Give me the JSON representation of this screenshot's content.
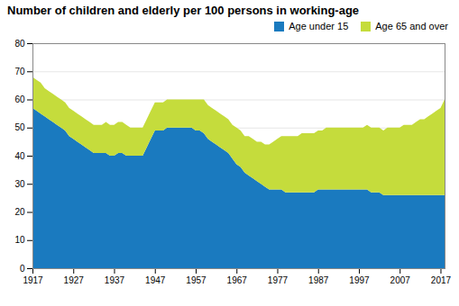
{
  "chart_data": {
    "type": "area",
    "stacked": true,
    "title": "Number of children and elderly per 100 persons in working-age",
    "x": [
      1917,
      1918,
      1919,
      1920,
      1921,
      1922,
      1923,
      1924,
      1925,
      1926,
      1927,
      1928,
      1929,
      1930,
      1931,
      1932,
      1933,
      1934,
      1935,
      1936,
      1937,
      1938,
      1939,
      1940,
      1941,
      1942,
      1943,
      1944,
      1945,
      1946,
      1947,
      1948,
      1949,
      1950,
      1951,
      1952,
      1953,
      1954,
      1955,
      1956,
      1957,
      1958,
      1959,
      1960,
      1961,
      1962,
      1963,
      1964,
      1965,
      1966,
      1967,
      1968,
      1969,
      1970,
      1971,
      1972,
      1973,
      1974,
      1975,
      1976,
      1977,
      1978,
      1979,
      1980,
      1981,
      1982,
      1983,
      1984,
      1985,
      1986,
      1987,
      1988,
      1989,
      1990,
      1991,
      1992,
      1993,
      1994,
      1995,
      1996,
      1997,
      1998,
      1999,
      2000,
      2001,
      2002,
      2003,
      2004,
      2005,
      2006,
      2007,
      2008,
      2009,
      2010,
      2011,
      2012,
      2013,
      2014,
      2015,
      2016,
      2017,
      2018
    ],
    "series": [
      {
        "name": "Age under 15",
        "color": "#1a7abf",
        "values": [
          57,
          56,
          55,
          54,
          53,
          52,
          51,
          50,
          49,
          47,
          46,
          45,
          44,
          43,
          42,
          41,
          41,
          41,
          41,
          40,
          40,
          41,
          41,
          40,
          40,
          40,
          40,
          40,
          43,
          46,
          49,
          49,
          49,
          50,
          50,
          50,
          50,
          50,
          50,
          50,
          49,
          49,
          48,
          46,
          45,
          44,
          43,
          42,
          41,
          39,
          37,
          36,
          34,
          33,
          32,
          31,
          30,
          29,
          28,
          28,
          28,
          28,
          27,
          27,
          27,
          27,
          27,
          27,
          27,
          27,
          28,
          28,
          28,
          28,
          28,
          28,
          28,
          28,
          28,
          28,
          28,
          28,
          28,
          27,
          27,
          27,
          26,
          26,
          26,
          26,
          26,
          26,
          26,
          26,
          26,
          26,
          26,
          26,
          26,
          26,
          26,
          26
        ]
      },
      {
        "name": "Age 65 and over",
        "color": "#c5dc3c",
        "values": [
          11,
          11,
          11,
          10,
          10,
          10,
          10,
          10,
          10,
          10,
          10,
          10,
          10,
          10,
          10,
          10,
          10,
          10,
          11,
          11,
          11,
          11,
          11,
          11,
          10,
          10,
          10,
          10,
          10,
          10,
          10,
          10,
          10,
          10,
          10,
          10,
          10,
          10,
          10,
          10,
          11,
          11,
          12,
          12,
          12,
          12,
          12,
          12,
          12,
          12,
          13,
          13,
          13,
          14,
          14,
          14,
          15,
          15,
          16,
          17,
          18,
          19,
          20,
          20,
          20,
          20,
          21,
          21,
          21,
          21,
          21,
          21,
          22,
          22,
          22,
          22,
          22,
          22,
          22,
          22,
          22,
          22,
          23,
          23,
          23,
          23,
          23,
          24,
          24,
          24,
          24,
          25,
          25,
          25,
          26,
          27,
          27,
          28,
          29,
          30,
          31,
          34
        ]
      }
    ],
    "xlim": [
      1917,
      2018
    ],
    "xticks": [
      1917,
      1927,
      1937,
      1947,
      1957,
      1967,
      1977,
      1987,
      1997,
      2007,
      2017
    ],
    "ylim": [
      0,
      80
    ],
    "yticks": [
      0,
      10,
      20,
      30,
      40,
      50,
      60,
      70,
      80
    ],
    "grid": true,
    "legend": "upper right"
  }
}
